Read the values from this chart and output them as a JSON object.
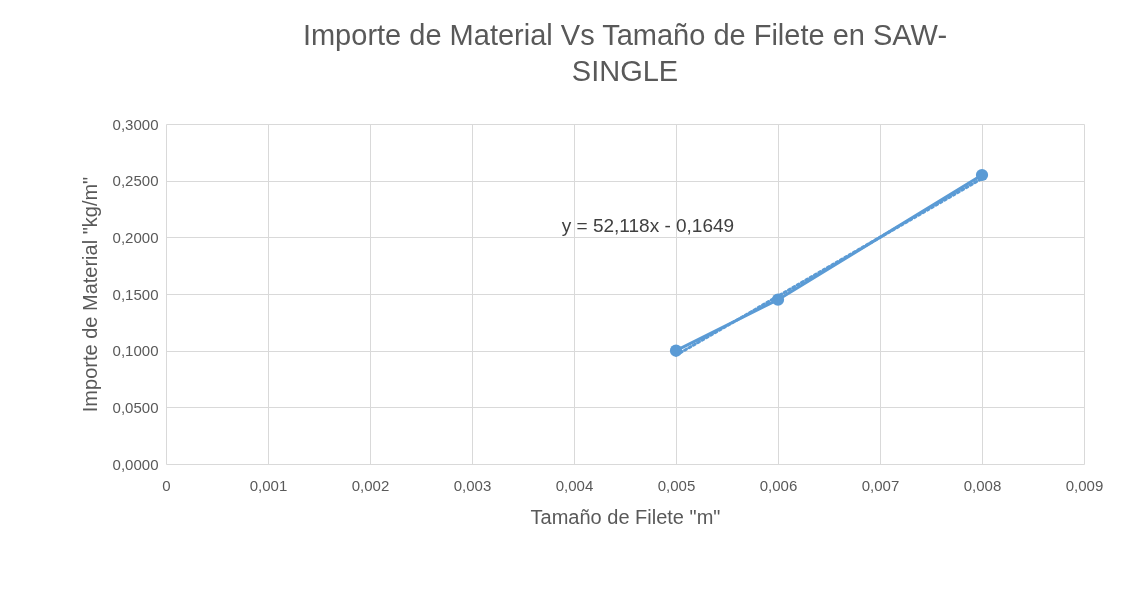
{
  "chart_data": {
    "type": "line",
    "title": "Importe de Material Vs Tamaño de Filete en SAW-SINGLE",
    "xlabel": "Tamaño de Filete \"m\"",
    "ylabel": "Importe de Material \"kg/m\"",
    "x": [
      0.005,
      0.006,
      0.008
    ],
    "series": [
      {
        "color": "#5b9bd5",
        "values": [
          0.1,
          0.145,
          0.255
        ],
        "marker": "circle",
        "line_style": "solid"
      },
      {
        "type": "line",
        "color": "#5b9bd5",
        "x": [
          0.005,
          0.008
        ],
        "values": [
          0.096,
          0.252
        ],
        "marker": "none",
        "line_style": "dotted"
      }
    ],
    "annotations": [
      "y = 52,118x - 0,1649"
    ],
    "xlim": [
      0,
      0.009
    ],
    "xticks": [
      0,
      {
        "value": 0.001,
        "label": "0,001"
      },
      {
        "value": 0.002,
        "label": "0,002"
      },
      {
        "value": 0.003,
        "label": "0,003"
      },
      {
        "value": 0.004,
        "label": "0,004"
      },
      {
        "value": 0.005,
        "label": "0,005"
      },
      {
        "value": 0.006,
        "label": "0,006"
      },
      {
        "value": 0.007,
        "label": "0,007"
      },
      {
        "value": 0.008,
        "label": "0,008"
      },
      {
        "value": 0.009,
        "label": "0,009"
      }
    ],
    "ylim": [
      0,
      0.3
    ],
    "yticks": [
      {
        "value": 0,
        "label": "0,0000"
      },
      {
        "value": 0.05,
        "label": "0,0500"
      },
      {
        "value": 0.1,
        "label": "0,1000"
      },
      {
        "value": 0.15,
        "label": "0,1500"
      },
      {
        "value": 0.2,
        "label": "0,2000"
      },
      {
        "value": 0.25,
        "label": "0,2500"
      },
      {
        "value": 0.3,
        "label": "0,3000"
      }
    ],
    "grid": true
  }
}
